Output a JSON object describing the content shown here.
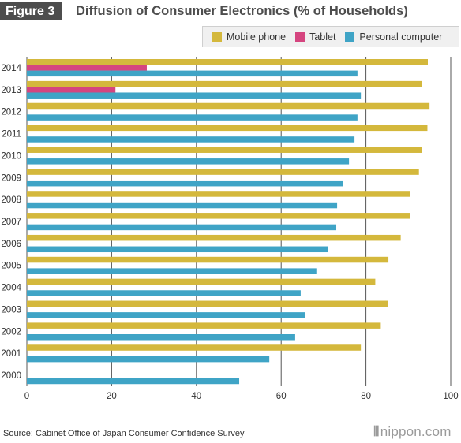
{
  "figure_label": "Figure 3",
  "title": "Diffusion of Consumer Electronics (% of Households)",
  "source": "Source: Cabinet Office of Japan Consumer Confidence Survey",
  "brand": {
    "mark": "⦀",
    "text": "nippon.com"
  },
  "colors": {
    "mobile": "#d4b83c",
    "tablet": "#d5457f",
    "pc": "#3fa4c6",
    "grid": "#555555"
  },
  "chart_data": {
    "type": "bar",
    "orientation": "horizontal",
    "categories": [
      "2014",
      "2013",
      "2012",
      "2011",
      "2010",
      "2009",
      "2008",
      "2007",
      "2006",
      "2005",
      "2004",
      "2003",
      "2002",
      "2001",
      "2000"
    ],
    "series": [
      {
        "name": "Mobile phone",
        "color": "#d4b83c",
        "values": [
          94.6,
          93.2,
          95.0,
          94.5,
          93.2,
          92.5,
          90.4,
          90.5,
          88.2,
          85.3,
          82.2,
          85.1,
          83.5,
          78.8,
          null
        ]
      },
      {
        "name": "Tablet",
        "color": "#d5457f",
        "values": [
          28.3,
          20.9,
          null,
          null,
          null,
          null,
          null,
          null,
          null,
          null,
          null,
          null,
          null,
          null,
          null
        ]
      },
      {
        "name": "Personal computer",
        "color": "#3fa4c6",
        "values": [
          78.0,
          78.8,
          78.0,
          77.3,
          76.0,
          74.6,
          73.2,
          73.0,
          71.0,
          68.3,
          64.6,
          65.7,
          63.3,
          57.2,
          50.1
        ]
      }
    ],
    "xlim": [
      0,
      100
    ],
    "x_ticks": [
      "0",
      "20",
      "40",
      "60",
      "80",
      "100"
    ],
    "grid": true,
    "legend_position": "top-right"
  }
}
